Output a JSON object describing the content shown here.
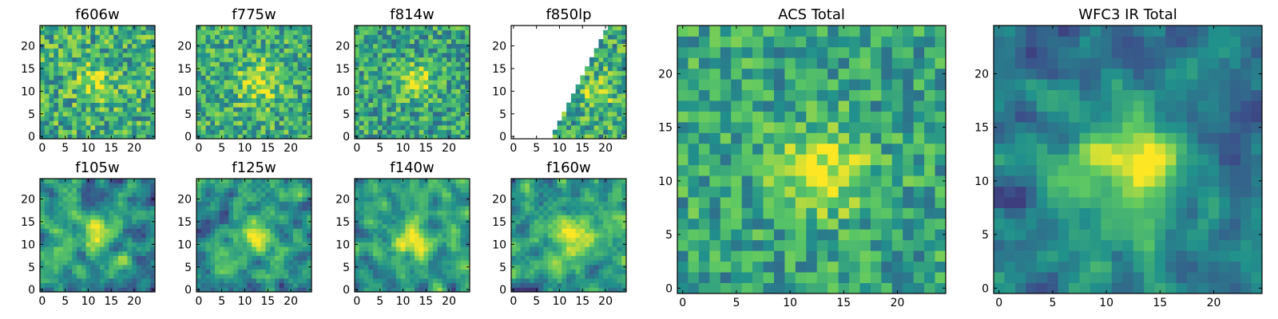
{
  "figure": {
    "description_free": true
  },
  "colormap": {
    "name": "viridis",
    "stops": [
      "#440154",
      "#3b528b",
      "#21918c",
      "#5ec962",
      "#fde725"
    ]
  },
  "chart_data": [
    {
      "type": "heatmap",
      "id": "f606w",
      "title": "f606w",
      "grid_size": 25,
      "x_ticks": [
        0,
        5,
        10,
        15,
        20
      ],
      "y_ticks": [
        0,
        5,
        10,
        15,
        20
      ],
      "mask": "none",
      "seed": 11,
      "noise_level": 0.55,
      "peak": 0.25,
      "center": [
        12,
        12
      ],
      "sigma": 3.0,
      "smooth": 0,
      "base": 0.62
    },
    {
      "type": "heatmap",
      "id": "f775w",
      "title": "f775w",
      "grid_size": 25,
      "x_ticks": [
        0,
        5,
        10,
        15,
        20
      ],
      "y_ticks": [
        0,
        5,
        10,
        15,
        20
      ],
      "mask": "none",
      "seed": 23,
      "noise_level": 0.5,
      "peak": 0.3,
      "center": [
        13,
        12
      ],
      "sigma": 3.2,
      "smooth": 0,
      "base": 0.62
    },
    {
      "type": "heatmap",
      "id": "f814w",
      "title": "f814w",
      "grid_size": 25,
      "x_ticks": [
        0,
        5,
        10,
        15,
        20
      ],
      "y_ticks": [
        0,
        5,
        10,
        15,
        20
      ],
      "mask": "none",
      "seed": 37,
      "noise_level": 0.5,
      "peak": 0.4,
      "center": [
        13,
        12
      ],
      "sigma": 2.5,
      "smooth": 0,
      "base": 0.58
    },
    {
      "type": "heatmap",
      "id": "f850lp",
      "title": "f850lp",
      "grid_size": 25,
      "x_ticks": [
        0,
        5,
        10,
        15,
        20
      ],
      "y_ticks": [
        0,
        5,
        10,
        15,
        20
      ],
      "mask": "diagonal",
      "seed": 41,
      "noise_level": 0.55,
      "peak": 0.3,
      "center": [
        18,
        10
      ],
      "sigma": 2.5,
      "smooth": 0,
      "base": 0.6
    },
    {
      "type": "heatmap",
      "id": "f105w",
      "title": "f105w",
      "grid_size": 25,
      "x_ticks": [
        0,
        5,
        10,
        15,
        20
      ],
      "y_ticks": [
        0,
        5,
        10,
        15,
        20
      ],
      "mask": "none",
      "seed": 53,
      "noise_level": 0.6,
      "peak": 0.45,
      "center": [
        12,
        12
      ],
      "sigma": 2.2,
      "smooth": 1,
      "base": 0.52
    },
    {
      "type": "heatmap",
      "id": "f125w",
      "title": "f125w",
      "grid_size": 25,
      "x_ticks": [
        0,
        5,
        10,
        15,
        20
      ],
      "y_ticks": [
        0,
        5,
        10,
        15,
        20
      ],
      "mask": "none",
      "seed": 67,
      "noise_level": 0.6,
      "peak": 0.4,
      "center": [
        12,
        12
      ],
      "sigma": 2.8,
      "smooth": 1,
      "base": 0.52
    },
    {
      "type": "heatmap",
      "id": "f140w",
      "title": "f140w",
      "grid_size": 25,
      "x_ticks": [
        0,
        5,
        10,
        15,
        20
      ],
      "y_ticks": [
        0,
        5,
        10,
        15,
        20
      ],
      "mask": "none",
      "seed": 79,
      "noise_level": 0.55,
      "peak": 0.45,
      "center": [
        12,
        11
      ],
      "sigma": 3.0,
      "smooth": 1,
      "base": 0.55
    },
    {
      "type": "heatmap",
      "id": "f160w",
      "title": "f160w",
      "grid_size": 25,
      "x_ticks": [
        0,
        5,
        10,
        15,
        20
      ],
      "y_ticks": [
        0,
        5,
        10,
        15,
        20
      ],
      "mask": "none",
      "seed": 97,
      "noise_level": 0.55,
      "peak": 0.45,
      "center": [
        13,
        12
      ],
      "sigma": 2.6,
      "smooth": 1,
      "base": 0.55
    },
    {
      "type": "heatmap",
      "id": "acs-total",
      "title": "ACS Total",
      "grid_size": 25,
      "x_ticks": [
        0,
        5,
        10,
        15,
        20
      ],
      "y_ticks": [
        0,
        5,
        10,
        15,
        20
      ],
      "mask": "none",
      "seed": 131,
      "noise_level": 0.45,
      "peak": 0.45,
      "center": [
        13,
        11
      ],
      "sigma": 2.8,
      "smooth": 0,
      "base": 0.58
    },
    {
      "type": "heatmap",
      "id": "wfc3-ir-total",
      "title": "WFC3 IR Total",
      "grid_size": 25,
      "x_ticks": [
        0,
        5,
        10,
        15,
        20
      ],
      "y_ticks": [
        0,
        5,
        10,
        15,
        20
      ],
      "mask": "none",
      "seed": 151,
      "noise_level": 0.45,
      "peak": 0.55,
      "center": [
        12,
        12
      ],
      "sigma": 3.2,
      "smooth": 1,
      "base": 0.42
    }
  ]
}
